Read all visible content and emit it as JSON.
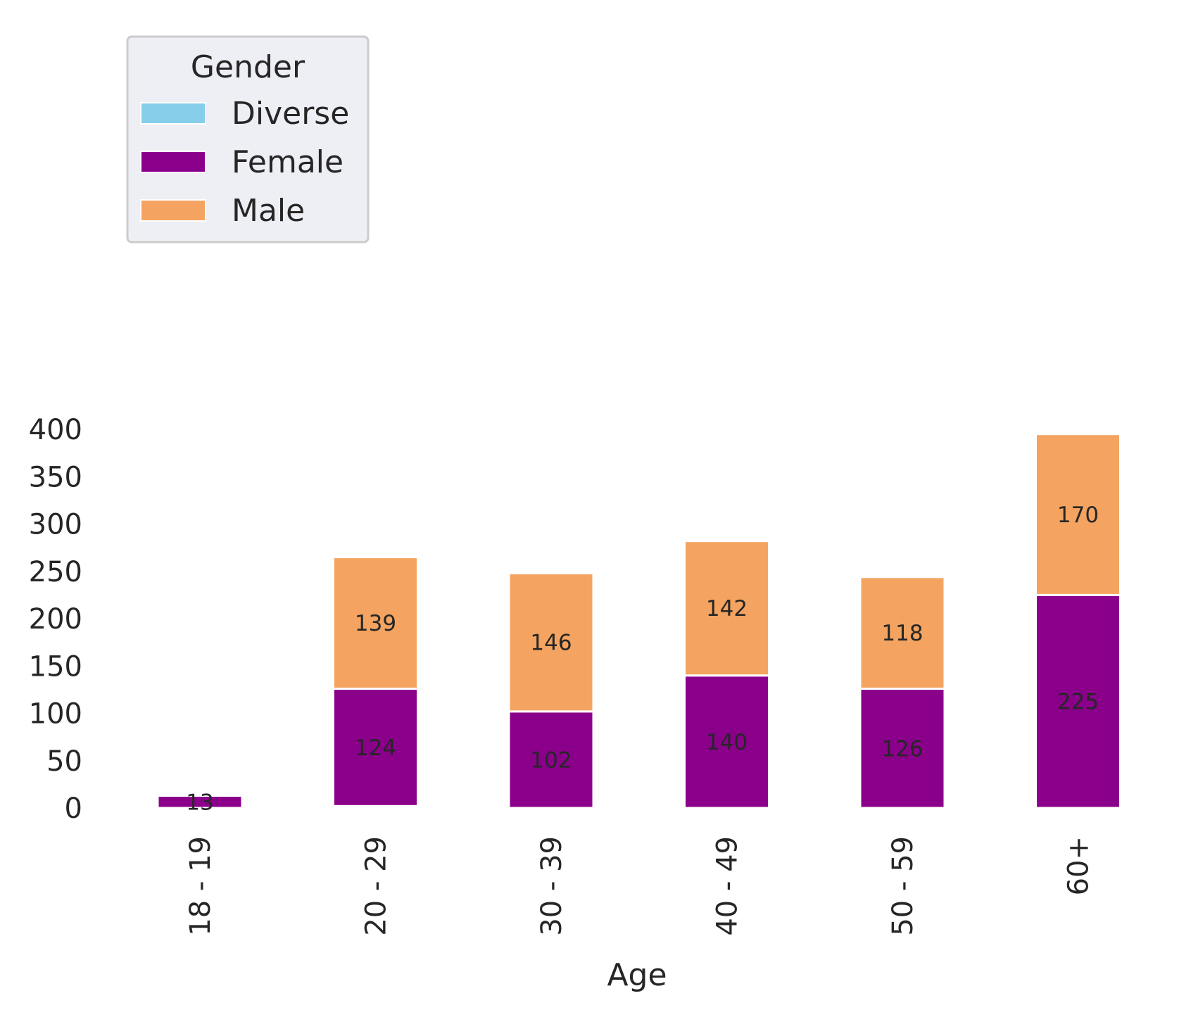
{
  "chart_data": {
    "type": "bar",
    "stacked": true,
    "xlabel": "Age",
    "ylabel": "",
    "categories": [
      "18 - 19",
      "20 - 29",
      "30 - 39",
      "40 - 49",
      "50 - 59",
      "60+"
    ],
    "series": [
      {
        "name": "Diverse",
        "color": "#87CEEB",
        "values": [
          0,
          2,
          0,
          0,
          0,
          0
        ],
        "labels": [
          "",
          "",
          "",
          "",
          "",
          ""
        ]
      },
      {
        "name": "Female",
        "color": "#8B008B",
        "values": [
          13,
          124,
          102,
          140,
          126,
          225
        ],
        "labels": [
          "13",
          "124",
          "102",
          "140",
          "126",
          "225"
        ]
      },
      {
        "name": "Male",
        "color": "#F4A460",
        "values": [
          1,
          139,
          146,
          142,
          118,
          170
        ],
        "labels": [
          "",
          "139",
          "146",
          "142",
          "118",
          "170"
        ]
      }
    ],
    "ylim": [
      0,
      400
    ],
    "yticks": [
      "0",
      "50",
      "100",
      "150",
      "200",
      "250",
      "300",
      "350",
      "400"
    ],
    "grid": false,
    "legend": {
      "title": "Gender",
      "placement": "top-left"
    }
  }
}
